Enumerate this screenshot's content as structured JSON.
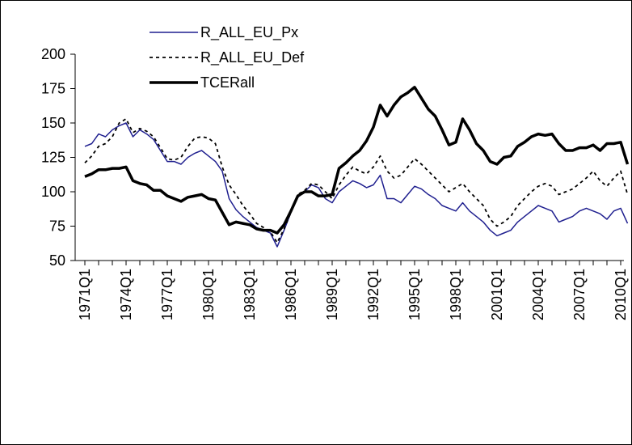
{
  "chart_data": {
    "type": "line",
    "categories": [
      "1971Q1",
      null,
      null,
      null,
      null,
      null,
      "1974Q1",
      null,
      null,
      null,
      null,
      null,
      "1977Q1",
      null,
      null,
      null,
      null,
      null,
      "1980Q1",
      null,
      null,
      null,
      null,
      null,
      "1983Q1",
      null,
      null,
      null,
      null,
      null,
      "1986Q1",
      null,
      null,
      null,
      null,
      null,
      "1989Q1",
      null,
      null,
      null,
      null,
      null,
      "1992Q1",
      null,
      null,
      null,
      null,
      null,
      "1995Q1",
      null,
      null,
      null,
      null,
      null,
      "1998Q1",
      null,
      null,
      null,
      null,
      null,
      "2001Q1",
      null,
      null,
      null,
      null,
      null,
      "2004Q1",
      null,
      null,
      null,
      null,
      null,
      "2007Q1",
      null,
      null,
      null,
      null,
      null,
      "2010Q1",
      null
    ],
    "series": [
      {
        "name": "R_ALL_EU_Px",
        "color": "#1f1f8f",
        "style": "solid",
        "width": 1.5,
        "values": [
          133,
          135,
          142,
          140,
          145,
          148,
          150,
          140,
          145,
          142,
          138,
          130,
          122,
          122,
          120,
          125,
          128,
          130,
          126,
          122,
          115,
          95,
          87,
          82,
          78,
          74,
          72,
          70,
          60,
          72,
          85,
          96,
          100,
          105,
          103,
          95,
          92,
          100,
          104,
          108,
          106,
          103,
          105,
          112,
          95,
          95,
          92,
          98,
          104,
          102,
          98,
          95,
          90,
          88,
          86,
          92,
          86,
          82,
          78,
          72,
          68,
          70,
          72,
          78,
          82,
          86,
          90,
          88,
          86,
          78,
          80,
          82,
          86,
          88,
          86,
          84,
          80,
          86,
          88,
          77
        ]
      },
      {
        "name": "R_ALL_EU_Def",
        "color": "#000000",
        "style": "dotted",
        "width": 1.8,
        "values": [
          121,
          126,
          133,
          135,
          140,
          150,
          153,
          143,
          146,
          144,
          140,
          132,
          124,
          123,
          125,
          133,
          139,
          140,
          139,
          135,
          118,
          105,
          98,
          90,
          84,
          77,
          74,
          71,
          63,
          73,
          85,
          98,
          101,
          106,
          105,
          100,
          95,
          105,
          112,
          118,
          115,
          113,
          118,
          126,
          115,
          110,
          112,
          118,
          124,
          120,
          115,
          110,
          105,
          100,
          103,
          106,
          100,
          95,
          90,
          80,
          75,
          78,
          82,
          90,
          95,
          100,
          104,
          106,
          104,
          98,
          100,
          102,
          106,
          110,
          115,
          108,
          104,
          110,
          115,
          98
        ]
      },
      {
        "name": "TCERall",
        "color": "#000000",
        "style": "solid",
        "width": 3.5,
        "values": [
          111,
          113,
          116,
          116,
          117,
          117,
          118,
          108,
          106,
          105,
          101,
          101,
          97,
          95,
          93,
          96,
          97,
          98,
          95,
          94,
          85,
          76,
          78,
          77,
          76,
          73,
          72,
          72,
          70,
          76,
          86,
          97,
          100,
          100,
          97,
          97,
          98,
          117,
          121,
          126,
          130,
          137,
          147,
          163,
          155,
          163,
          169,
          172,
          176,
          168,
          160,
          155,
          145,
          134,
          136,
          153,
          145,
          135,
          130,
          122,
          120,
          125,
          126,
          133,
          136,
          140,
          142,
          141,
          142,
          135,
          130,
          130,
          132,
          132,
          134,
          130,
          135,
          135,
          136,
          120
        ]
      }
    ],
    "ylim": [
      50,
      200
    ],
    "yticks": [
      50,
      75,
      100,
      125,
      150,
      175,
      200
    ],
    "grid": false,
    "legend": "top-left"
  }
}
